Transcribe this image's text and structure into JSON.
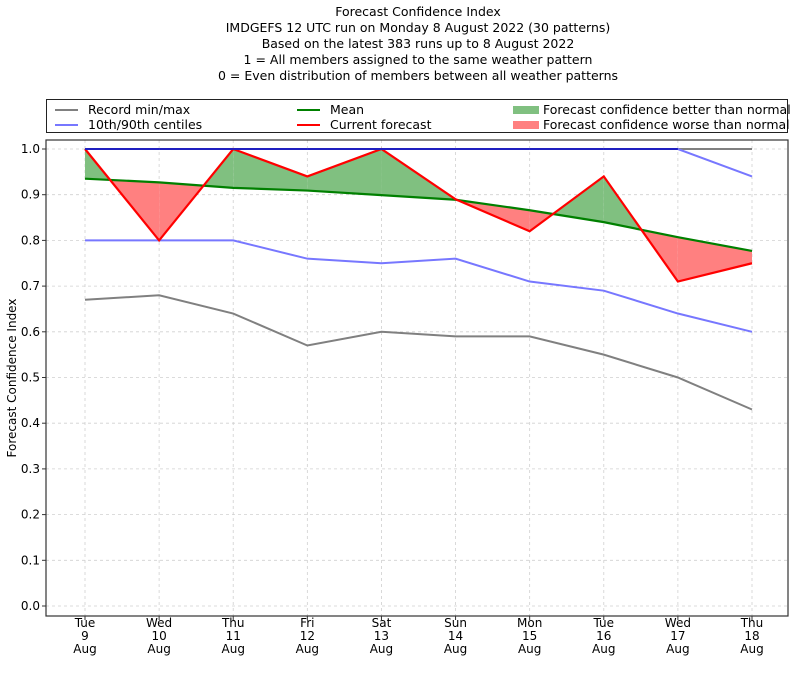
{
  "chart_data": {
    "type": "line",
    "title_lines": [
      "Forecast Confidence Index",
      "IMDGEFS 12 UTC run on Monday 8 August 2022 (30 patterns)",
      "Based on the latest 383 runs up to 8 August 2022",
      "1 = All members assigned to the same weather pattern",
      "0 = Even distribution of members between all weather patterns"
    ],
    "ylabel": "Forecast Confidence Index",
    "xlabel": "",
    "ylim": [
      0.0,
      1.0
    ],
    "yticks": [
      "0.0",
      "0.1",
      "0.2",
      "0.3",
      "0.4",
      "0.5",
      "0.6",
      "0.7",
      "0.8",
      "0.9",
      "1.0"
    ],
    "grid": true,
    "categories": [
      {
        "day": "Tue",
        "date": "9",
        "month": "Aug"
      },
      {
        "day": "Wed",
        "date": "10",
        "month": "Aug"
      },
      {
        "day": "Thu",
        "date": "11",
        "month": "Aug"
      },
      {
        "day": "Fri",
        "date": "12",
        "month": "Aug"
      },
      {
        "day": "Sat",
        "date": "13",
        "month": "Aug"
      },
      {
        "day": "Sun",
        "date": "14",
        "month": "Aug"
      },
      {
        "day": "Mon",
        "date": "15",
        "month": "Aug"
      },
      {
        "day": "Tue",
        "date": "16",
        "month": "Aug"
      },
      {
        "day": "Wed",
        "date": "17",
        "month": "Aug"
      },
      {
        "day": "Thu",
        "date": "18",
        "month": "Aug"
      }
    ],
    "series": [
      {
        "name": "Record max",
        "legend_group": "Record min/max",
        "color": "#808080",
        "values": [
          1.0,
          1.0,
          1.0,
          1.0,
          1.0,
          1.0,
          1.0,
          1.0,
          1.0,
          1.0
        ]
      },
      {
        "name": "Record min",
        "legend_group": "Record min/max",
        "color": "#808080",
        "values": [
          0.67,
          0.68,
          0.64,
          0.57,
          0.6,
          0.59,
          0.59,
          0.55,
          0.5,
          0.43
        ]
      },
      {
        "name": "10th centile",
        "legend_group": "10th/90th centiles",
        "color": "#7777ff",
        "values": [
          0.8,
          0.8,
          0.8,
          0.76,
          0.75,
          0.76,
          0.71,
          0.69,
          0.64,
          0.6
        ]
      },
      {
        "name": "90th centile",
        "legend_group": "10th/90th centiles",
        "color": "#7777ff",
        "values": [
          1.0,
          1.0,
          1.0,
          1.0,
          1.0,
          1.0,
          1.0,
          1.0,
          1.0,
          0.94
        ]
      },
      {
        "name": "Mean",
        "legend_group": "Mean",
        "color": "#008000",
        "values": [
          0.935,
          0.927,
          0.915,
          0.909,
          0.899,
          0.889,
          0.866,
          0.84,
          0.807,
          0.777
        ]
      },
      {
        "name": "Current forecast",
        "legend_group": "Current forecast",
        "color": "#ff0000",
        "values": [
          1.0,
          0.8,
          1.0,
          0.94,
          1.0,
          0.89,
          0.82,
          0.94,
          0.71,
          0.75
        ]
      }
    ],
    "fills": {
      "better": {
        "label": "Forecast confidence better than normal",
        "color": "#80c080"
      },
      "worse": {
        "label": "Forecast confidence worse than normal",
        "color": "#ff8080"
      }
    },
    "legend": {
      "placement": "top",
      "entries": [
        {
          "label": "Record min/max",
          "color": "#808080",
          "kind": "line"
        },
        {
          "label": "10th/90th centiles",
          "color": "#7777ff",
          "kind": "line"
        },
        {
          "label": "Mean",
          "color": "#008000",
          "kind": "line"
        },
        {
          "label": "Current forecast",
          "color": "#ff0000",
          "kind": "line"
        },
        {
          "label": "Forecast confidence better than normal",
          "color": "#80c080",
          "kind": "patch"
        },
        {
          "label": "Forecast confidence worse than normal",
          "color": "#ff8080",
          "kind": "patch"
        }
      ]
    }
  }
}
